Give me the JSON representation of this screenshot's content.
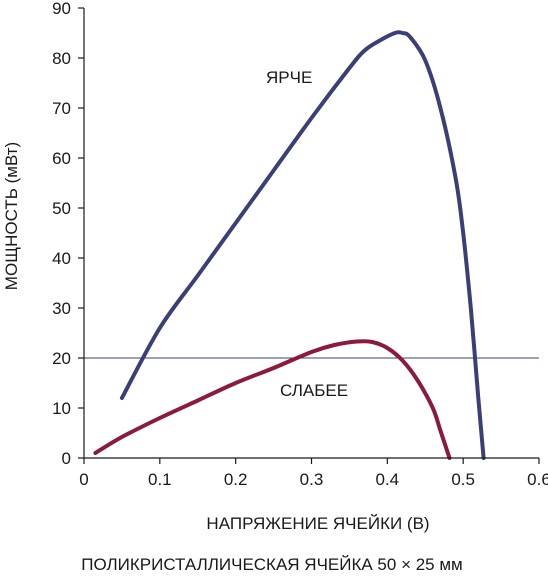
{
  "chart_data": {
    "type": "line",
    "title": "",
    "caption": "ПОЛИКРИСТАЛЛИЧЕСКАЯ ЯЧЕЙКА 50 × 25 мм",
    "xlabel": "НАПРЯЖЕНИЕ ЯЧЕЙКИ (В)",
    "ylabel": "МОЩНОСТЬ (мВт)",
    "xlim": [
      0,
      0.6
    ],
    "ylim": [
      0,
      90
    ],
    "xticks": [
      "0",
      "0.1",
      "0.2",
      "0.3",
      "0.4",
      "0.5",
      "0.6"
    ],
    "yticks": [
      "0",
      "10",
      "20",
      "30",
      "40",
      "50",
      "60",
      "70",
      "80",
      "90"
    ],
    "grid": "horizontal line at 20",
    "gridlines_y": [
      20
    ],
    "annotations": [
      "ЯРЧЕ",
      "СЛАБЕЕ"
    ],
    "colors": {
      "bright": "#3b3f78",
      "dim": "#8b1a3c",
      "grid": "#3b3f78"
    },
    "series": [
      {
        "label": "ЯРЧЕ",
        "x": [
          0.05,
          0.1,
          0.15,
          0.2,
          0.25,
          0.3,
          0.35,
          0.37,
          0.39,
          0.41,
          0.42,
          0.43,
          0.45,
          0.47,
          0.49,
          0.5,
          0.51,
          0.52,
          0.527
        ],
        "y": [
          12,
          26,
          36.5,
          47,
          57.5,
          68,
          78,
          81.5,
          83.5,
          85,
          85,
          84.2,
          79.5,
          70,
          56,
          45,
          30,
          12,
          0
        ]
      },
      {
        "label": "СЛАБЕЕ",
        "x": [
          0.015,
          0.05,
          0.1,
          0.15,
          0.2,
          0.25,
          0.3,
          0.33,
          0.36,
          0.38,
          0.4,
          0.42,
          0.44,
          0.46,
          0.47,
          0.482
        ],
        "y": [
          1,
          4.2,
          8,
          11.5,
          15,
          18,
          21.2,
          22.6,
          23.3,
          23.2,
          22,
          19.5,
          15.5,
          10,
          5.5,
          0
        ]
      }
    ]
  }
}
